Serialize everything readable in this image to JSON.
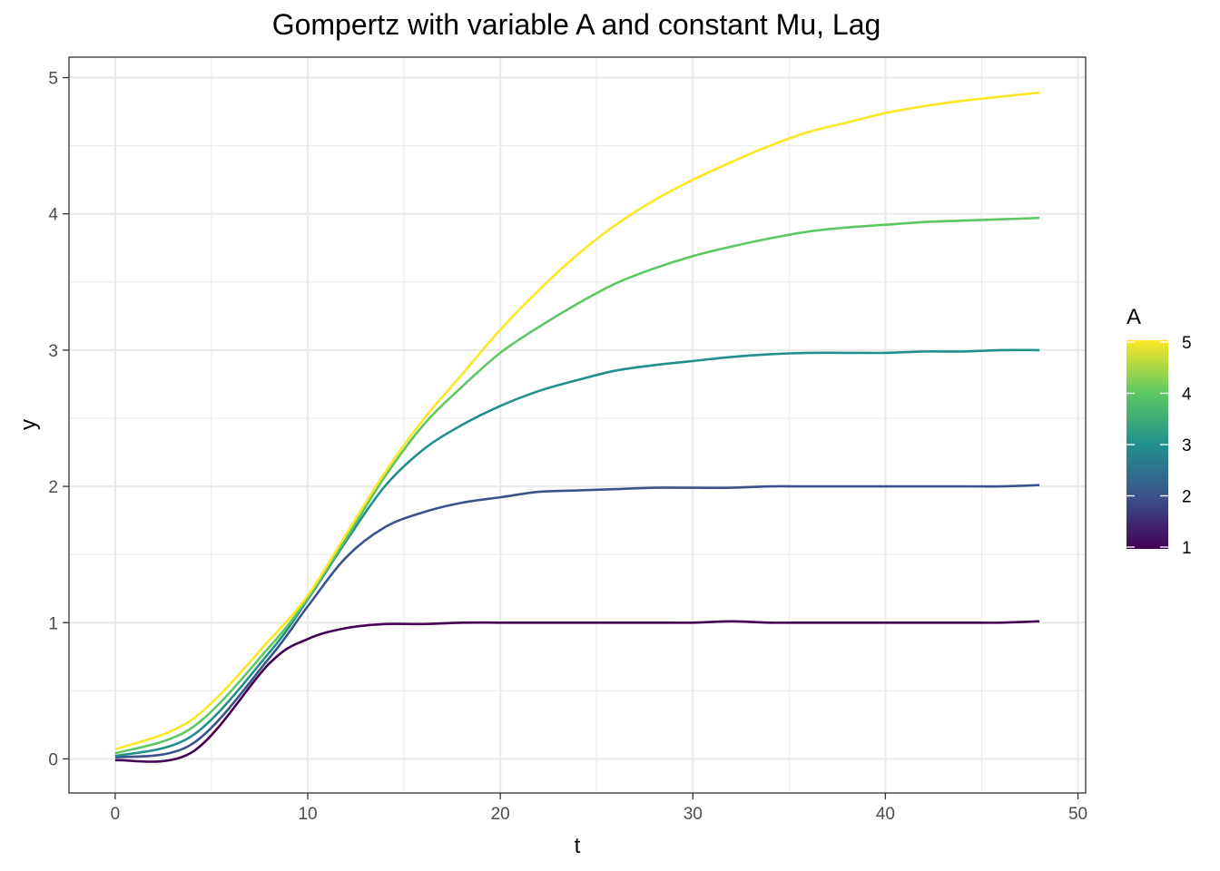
{
  "chart_data": {
    "type": "line",
    "title": "Gompertz with variable A and constant Mu, Lag",
    "xlabel": "t",
    "ylabel": "y",
    "xlim": [
      -2.4,
      50.4
    ],
    "ylim": [
      -0.25,
      5.15
    ],
    "x_ticks": [
      0,
      10,
      20,
      30,
      40,
      50
    ],
    "x_tick_labels": [
      "0",
      "10",
      "20",
      "30",
      "40",
      "50"
    ],
    "y_ticks": [
      0,
      1,
      2,
      3,
      4,
      5
    ],
    "y_tick_labels": [
      "0",
      "1",
      "2",
      "3",
      "4",
      "5"
    ],
    "grid": true,
    "panel_border": true,
    "x": [
      0,
      4,
      8,
      10,
      12,
      14,
      16,
      18,
      20,
      22,
      24,
      26,
      28,
      30,
      32,
      34,
      36,
      38,
      40,
      42,
      44,
      46,
      48
    ],
    "series": [
      {
        "A": 1,
        "color": "#440154",
        "values": [
          -0.01,
          0.05,
          0.7,
          0.88,
          0.96,
          0.99,
          0.99,
          1.0,
          1.0,
          1.0,
          1.0,
          1.0,
          1.0,
          1.0,
          1.01,
          1.0,
          1.0,
          1.0,
          1.0,
          1.0,
          1.0,
          1.0,
          1.01
        ]
      },
      {
        "A": 2,
        "color": "#3B528B",
        "values": [
          0.01,
          0.11,
          0.74,
          1.12,
          1.48,
          1.7,
          1.81,
          1.88,
          1.92,
          1.96,
          1.97,
          1.98,
          1.99,
          1.99,
          1.99,
          2.0,
          2.0,
          2.0,
          2.0,
          2.0,
          2.0,
          2.0,
          2.01
        ]
      },
      {
        "A": 3,
        "color": "#21908C",
        "values": [
          0.02,
          0.17,
          0.78,
          1.17,
          1.6,
          2.0,
          2.27,
          2.45,
          2.59,
          2.7,
          2.78,
          2.85,
          2.89,
          2.92,
          2.95,
          2.97,
          2.98,
          2.98,
          2.98,
          2.99,
          2.99,
          3.0,
          3.0
        ]
      },
      {
        "A": 4,
        "color": "#5DC863",
        "values": [
          0.04,
          0.23,
          0.82,
          1.18,
          1.62,
          2.07,
          2.45,
          2.73,
          2.98,
          3.17,
          3.34,
          3.49,
          3.6,
          3.69,
          3.76,
          3.82,
          3.87,
          3.9,
          3.92,
          3.94,
          3.95,
          3.96,
          3.97
        ]
      },
      {
        "A": 5,
        "color": "#FDE725",
        "values": [
          0.07,
          0.29,
          0.87,
          1.2,
          1.65,
          2.1,
          2.49,
          2.82,
          3.15,
          3.44,
          3.7,
          3.92,
          4.1,
          4.25,
          4.38,
          4.5,
          4.6,
          4.67,
          4.74,
          4.79,
          4.83,
          4.86,
          4.89
        ]
      }
    ],
    "legend": {
      "title": "A",
      "type": "colorbar",
      "placement": "right",
      "range": [
        1,
        5
      ],
      "breaks": [
        1,
        2,
        3,
        4,
        5
      ],
      "break_labels": [
        "1",
        "2",
        "3",
        "4",
        "5"
      ],
      "colors": [
        "#440154",
        "#3B528B",
        "#21908C",
        "#5DC863",
        "#FDE725"
      ]
    }
  }
}
